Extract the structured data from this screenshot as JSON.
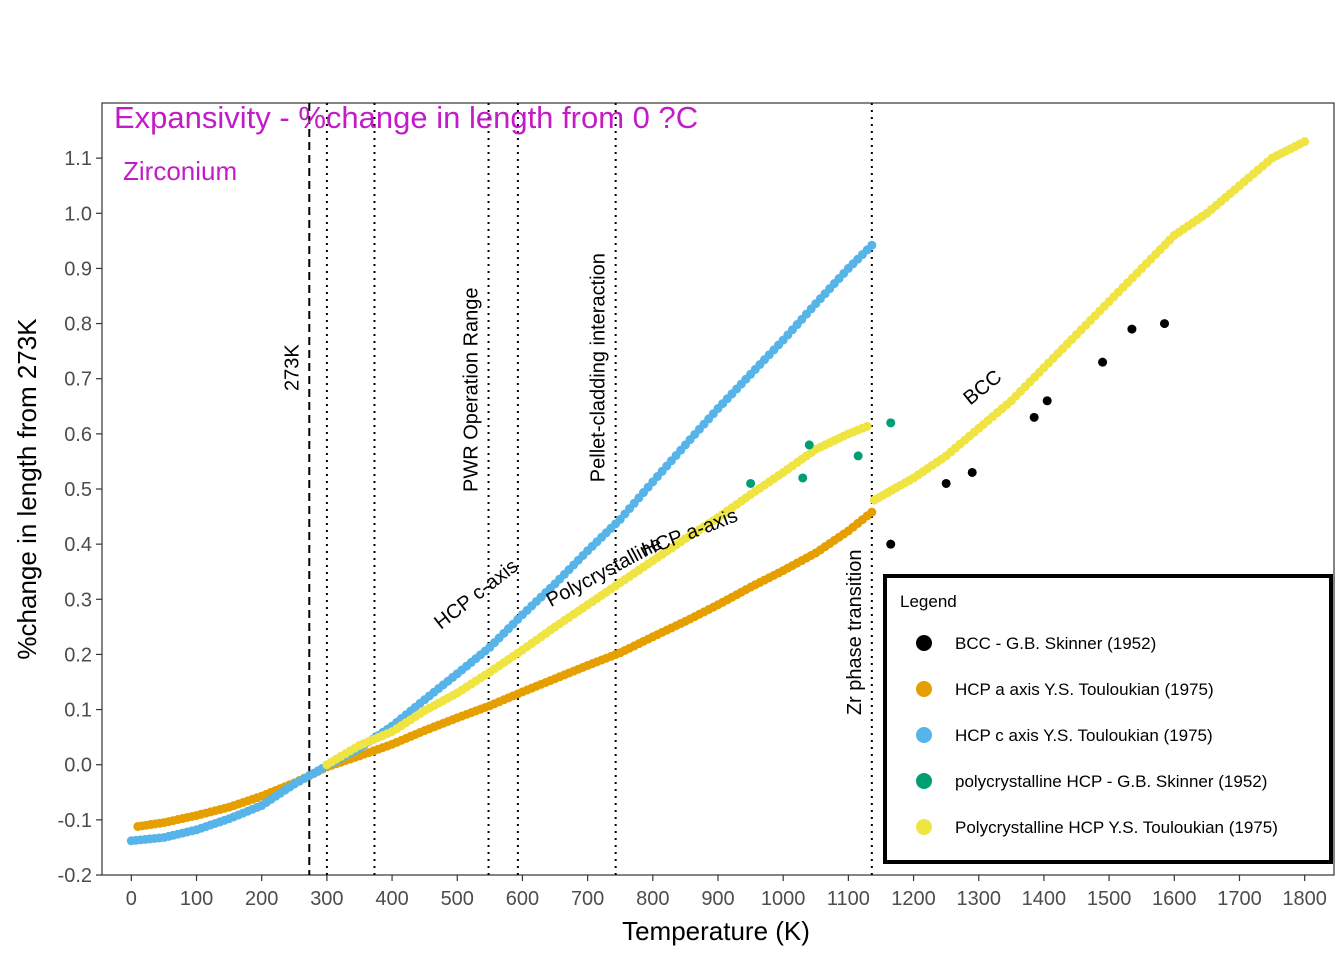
{
  "chart_data": {
    "type": "scatter",
    "title": "Expansivity - %change in length from 0 ?C",
    "subtitle": "Zirconium",
    "xlabel": "Temperature (K)",
    "ylabel": "%change in length from 273K",
    "xlim": [
      -45,
      1845
    ],
    "ylim": [
      -0.2,
      1.2
    ],
    "x_ticks": [
      "0",
      "100",
      "200",
      "300",
      "400",
      "500",
      "600",
      "700",
      "800",
      "900",
      "1000",
      "1100",
      "1200",
      "1300",
      "1400",
      "1500",
      "1600",
      "1700",
      "1800"
    ],
    "y_ticks": [
      "-0.2",
      "-0.1",
      "0.0",
      "0.1",
      "0.2",
      "0.3",
      "0.4",
      "0.5",
      "0.6",
      "0.7",
      "0.8",
      "0.9",
      "1.0",
      "1.1"
    ],
    "grid": false,
    "legend": {
      "title": "Legend",
      "placement": "bottom-right",
      "entries": [
        {
          "label": "BCC - G.B. Skinner (1952)",
          "color": "#000000"
        },
        {
          "label": "HCP a axis Y.S. Touloukian (1975)",
          "color": "#E69F00"
        },
        {
          "label": "HCP c axis Y.S. Touloukian (1975)",
          "color": "#56B4E9"
        },
        {
          "label": "polycrystalline HCP - G.B. Skinner (1952)",
          "color": "#009E73"
        },
        {
          "label": "Polycrystalline HCP Y.S. Touloukian (1975)",
          "color": "#F0E442"
        }
      ]
    },
    "vlines": [
      {
        "x": 273,
        "style": "dashed",
        "label": "273K"
      },
      {
        "x": 300,
        "style": "dotted",
        "label": ""
      },
      {
        "x": 373,
        "style": "dotted",
        "label": ""
      },
      {
        "x": 548,
        "style": "dotted",
        "label": "PWR Operation Range"
      },
      {
        "x": 593,
        "style": "dotted",
        "label": ""
      },
      {
        "x": 743,
        "style": "dotted",
        "label": "Pellet-cladding interaction"
      },
      {
        "x": 1136,
        "style": "dotted",
        "label": "Zr phase transition"
      }
    ],
    "annotations": [
      {
        "text": "HCP c-axis",
        "x": 535,
        "y": 0.3,
        "angle": -38
      },
      {
        "text": "Polycrystalline",
        "x": 730,
        "y": 0.34,
        "angle": -28
      },
      {
        "text": "HCP a-axis",
        "x": 860,
        "y": 0.41,
        "angle": -21
      },
      {
        "text": "BCC",
        "x": 1312,
        "y": 0.675,
        "angle": -39
      }
    ],
    "series": [
      {
        "name": "HCP a axis Y.S. Touloukian (1975)",
        "color": "#E69F00",
        "x": [
          10,
          50,
          100,
          150,
          200,
          250,
          273,
          300,
          350,
          400,
          450,
          500,
          550,
          600,
          650,
          700,
          750,
          800,
          850,
          900,
          950,
          1000,
          1050,
          1100,
          1136
        ],
        "y": [
          -0.112,
          -0.105,
          -0.092,
          -0.077,
          -0.057,
          -0.033,
          -0.02,
          -0.004,
          0.016,
          0.037,
          0.062,
          0.085,
          0.107,
          0.132,
          0.156,
          0.18,
          0.203,
          0.232,
          0.26,
          0.29,
          0.322,
          0.352,
          0.384,
          0.424,
          0.458
        ]
      },
      {
        "name": "HCP c axis Y.S. Touloukian (1975)",
        "color": "#56B4E9",
        "x": [
          0,
          50,
          100,
          150,
          200,
          250,
          273,
          300,
          350,
          400,
          450,
          500,
          550,
          600,
          650,
          700,
          750,
          800,
          850,
          900,
          950,
          1000,
          1050,
          1100,
          1136
        ],
        "y": [
          -0.138,
          -0.132,
          -0.118,
          -0.098,
          -0.074,
          -0.035,
          -0.02,
          -0.002,
          0.03,
          0.07,
          0.118,
          0.165,
          0.213,
          0.272,
          0.328,
          0.388,
          0.445,
          0.513,
          0.58,
          0.646,
          0.708,
          0.77,
          0.836,
          0.9,
          0.942
        ]
      },
      {
        "name": "Polycrystalline HCP Y.S. Touloukian (1975)",
        "color": "#F0E442",
        "x": [
          300,
          350,
          400,
          450,
          500,
          550,
          600,
          650,
          700,
          750,
          800,
          850,
          900,
          950,
          1000,
          1050,
          1100,
          1136,
          1140,
          1200,
          1250,
          1300,
          1350,
          1400,
          1450,
          1500,
          1550,
          1600,
          1650,
          1700,
          1750,
          1800
        ],
        "y": [
          0.0,
          0.035,
          0.06,
          0.098,
          0.13,
          0.168,
          0.208,
          0.25,
          0.29,
          0.33,
          0.37,
          0.41,
          0.448,
          0.49,
          0.53,
          0.572,
          0.6,
          0.617,
          0.48,
          0.52,
          0.56,
          0.61,
          0.66,
          0.72,
          0.78,
          0.84,
          0.9,
          0.96,
          1.0,
          1.05,
          1.1,
          1.13
        ]
      },
      {
        "name": "polycrystalline HCP - G.B. Skinner (1952)",
        "color": "#009E73",
        "x": [
          950,
          1030,
          1040,
          1115,
          1165
        ],
        "y": [
          0.51,
          0.52,
          0.58,
          0.56,
          0.62
        ]
      },
      {
        "name": "BCC - G.B. Skinner (1952)",
        "color": "#000000",
        "x": [
          1165,
          1250,
          1290,
          1385,
          1405,
          1490,
          1535,
          1585
        ],
        "y": [
          0.4,
          0.51,
          0.53,
          0.63,
          0.66,
          0.73,
          0.79,
          0.8
        ]
      }
    ]
  }
}
